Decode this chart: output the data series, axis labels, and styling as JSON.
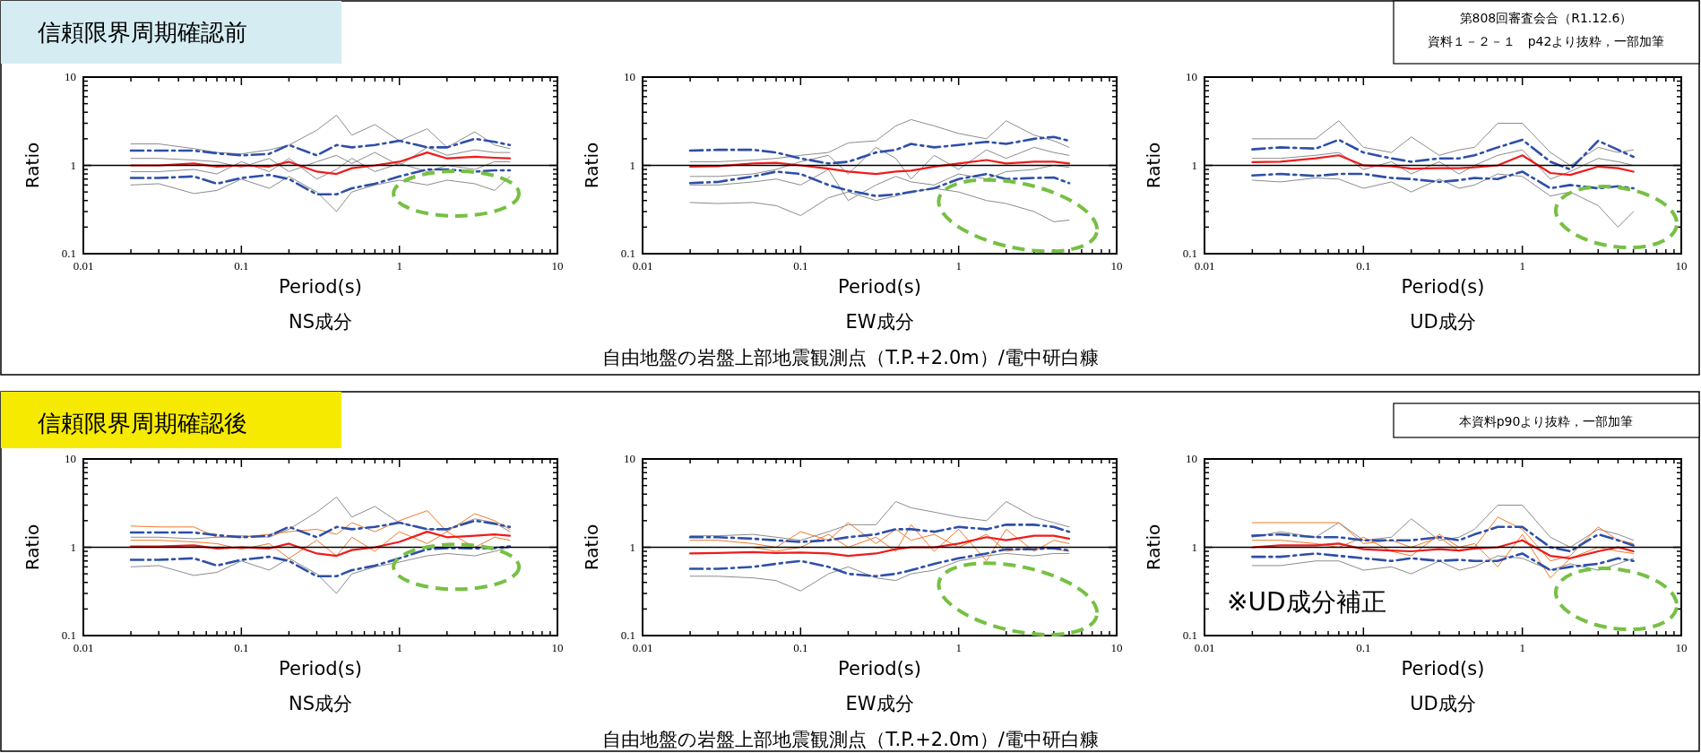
{
  "chart_data": [
    {
      "type": "line",
      "title": "信頼限界周期確認前",
      "annotations": [
        "第808回審査会合（R1.12.6）",
        "資料１－２－１　p42より抜粋，一部加筆"
      ],
      "xlabel": "Period(s)",
      "ylabel": "Ratio",
      "subtitle": "NS成分",
      "log": "xy",
      "xlim": [
        0.01,
        10
      ],
      "ylim": [
        0.1,
        10
      ],
      "xticks": [
        0.01,
        {
          "value": 0.02,
          "label": null
        },
        {
          "value": 0.03,
          "label": null
        },
        {
          "value": 0.04,
          "label": null
        },
        {
          "value": 0.05,
          "label": null
        },
        {
          "value": 0.06,
          "label": null
        },
        {
          "value": 0.07,
          "label": null
        },
        {
          "value": 0.08,
          "label": null
        },
        {
          "value": 0.09,
          "label": null
        },
        0.1,
        {
          "value": 0.2,
          "label": null
        },
        {
          "value": 0.3,
          "label": null
        },
        {
          "value": 0.4,
          "label": null
        },
        {
          "value": 0.5,
          "label": null
        },
        {
          "value": 0.6,
          "label": null
        },
        {
          "value": 0.7,
          "label": null
        },
        {
          "value": 0.8,
          "label": null
        },
        {
          "value": 0.9,
          "label": null
        },
        1,
        {
          "value": 2,
          "label": null
        },
        {
          "value": 3,
          "label": null
        },
        {
          "value": 4,
          "label": null
        },
        {
          "value": 5,
          "label": null
        },
        {
          "value": 6,
          "label": null
        },
        {
          "value": 7,
          "label": null
        },
        {
          "value": 8,
          "label": null
        },
        {
          "value": 9,
          "label": null
        },
        10
      ],
      "yticks": [
        0.1,
        {
          "value": 0.2,
          "label": null
        },
        {
          "value": 0.3,
          "label": null
        },
        {
          "value": 0.4,
          "label": null
        },
        {
          "value": 0.5,
          "label": null
        },
        {
          "value": 0.6,
          "label": null
        },
        {
          "value": 0.7,
          "label": null
        },
        {
          "value": 0.8,
          "label": null
        },
        {
          "value": 0.9,
          "label": null
        },
        1,
        {
          "value": 2,
          "label": null
        },
        {
          "value": 3,
          "label": null
        },
        {
          "value": 4,
          "label": null
        },
        {
          "value": 5,
          "label": null
        },
        {
          "value": 6,
          "label": null
        },
        {
          "value": 7,
          "label": null
        },
        {
          "value": 8,
          "label": null
        },
        {
          "value": 9,
          "label": null
        },
        10
      ],
      "ref_lines": [
        {
          "axis": "y",
          "value": 1,
          "color": "#000000"
        }
      ],
      "x": [
        0.02,
        0.03,
        0.05,
        0.07,
        0.1,
        0.15,
        0.2,
        0.3,
        0.4,
        0.5,
        0.7,
        1,
        1.5,
        2,
        3,
        4,
        5
      ],
      "series": [
        {
          "color": "#8c8c8c",
          "values": [
            1.75,
            1.75,
            1.55,
            1.4,
            1.35,
            1.5,
            1.7,
            2.5,
            3.7,
            2.2,
            2.9,
            1.9,
            2.6,
            1.6,
            2.4,
            1.7,
            1.55
          ]
        },
        {
          "color": "#8c8c8c",
          "values": [
            0.6,
            0.62,
            0.48,
            0.52,
            0.7,
            0.55,
            0.75,
            0.5,
            0.3,
            0.5,
            0.6,
            0.68,
            0.6,
            0.68,
            0.62,
            0.52,
            0.75
          ]
        },
        {
          "color": "#8c8c8c",
          "values": [
            1.2,
            1.2,
            1.15,
            1.1,
            0.95,
            1.2,
            0.85,
            1.1,
            1.3,
            1.05,
            1.4,
            1,
            1.6,
            1.3,
            1.5,
            1.4,
            1.4
          ]
        },
        {
          "color": "#8c8c8c",
          "values": [
            0.85,
            0.85,
            0.9,
            0.8,
            1.1,
            0.85,
            1.2,
            0.7,
            0.9,
            1.2,
            0.85,
            1.05,
            0.85,
            1,
            0.9,
            1.1,
            1.1
          ]
        },
        {
          "color": "#2e4fa8",
          "line_style": "dashed",
          "values": [
            1.47,
            1.47,
            1.47,
            1.37,
            1.3,
            1.35,
            1.7,
            1.3,
            1.7,
            1.6,
            1.7,
            1.9,
            1.6,
            1.6,
            2,
            1.85,
            1.7
          ]
        },
        {
          "color": "#2e4fa8",
          "line_style": "dashed",
          "values": [
            0.72,
            0.72,
            0.75,
            0.62,
            0.72,
            0.78,
            0.7,
            0.47,
            0.47,
            0.55,
            0.62,
            0.75,
            0.9,
            0.9,
            0.85,
            0.88,
            0.88
          ]
        },
        {
          "color": "#ee1c1c",
          "values": [
            1,
            1,
            1.05,
            0.97,
            1,
            0.97,
            1.1,
            0.85,
            0.8,
            0.93,
            1,
            1.1,
            1.4,
            1.2,
            1.25,
            1.22,
            1.2
          ]
        }
      ]
    },
    {
      "type": "line",
      "annotations": [
        "自由地盤の岩盤上部地震観測点（T.P.+2.0m）/電中研白糠"
      ],
      "xlabel": "Period(s)",
      "ylabel": "Ratio",
      "subtitle": "EW成分",
      "log": "xy",
      "xlim": [
        0.01,
        10
      ],
      "ylim": [
        0.1,
        10
      ],
      "xticks": [
        0.01,
        {
          "value": 0.02,
          "label": null
        },
        {
          "value": 0.03,
          "label": null
        },
        {
          "value": 0.04,
          "label": null
        },
        {
          "value": 0.05,
          "label": null
        },
        {
          "value": 0.06,
          "label": null
        },
        {
          "value": 0.07,
          "label": null
        },
        {
          "value": 0.08,
          "label": null
        },
        {
          "value": 0.09,
          "label": null
        },
        0.1,
        {
          "value": 0.2,
          "label": null
        },
        {
          "value": 0.3,
          "label": null
        },
        {
          "value": 0.4,
          "label": null
        },
        {
          "value": 0.5,
          "label": null
        },
        {
          "value": 0.6,
          "label": null
        },
        {
          "value": 0.7,
          "label": null
        },
        {
          "value": 0.8,
          "label": null
        },
        {
          "value": 0.9,
          "label": null
        },
        1,
        {
          "value": 2,
          "label": null
        },
        {
          "value": 3,
          "label": null
        },
        {
          "value": 4,
          "label": null
        },
        {
          "value": 5,
          "label": null
        },
        {
          "value": 6,
          "label": null
        },
        {
          "value": 7,
          "label": null
        },
        {
          "value": 8,
          "label": null
        },
        {
          "value": 9,
          "label": null
        },
        10
      ],
      "yticks": [
        0.1,
        {
          "value": 0.2,
          "label": null
        },
        {
          "value": 0.3,
          "label": null
        },
        {
          "value": 0.4,
          "label": null
        },
        {
          "value": 0.5,
          "label": null
        },
        {
          "value": 0.6,
          "label": null
        },
        {
          "value": 0.7,
          "label": null
        },
        {
          "value": 0.8,
          "label": null
        },
        {
          "value": 0.9,
          "label": null
        },
        1,
        {
          "value": 2,
          "label": null
        },
        {
          "value": 3,
          "label": null
        },
        {
          "value": 4,
          "label": null
        },
        {
          "value": 5,
          "label": null
        },
        {
          "value": 6,
          "label": null
        },
        {
          "value": 7,
          "label": null
        },
        {
          "value": 8,
          "label": null
        },
        {
          "value": 9,
          "label": null
        },
        10
      ],
      "ref_lines": [
        {
          "axis": "y",
          "value": 1,
          "color": "#000000"
        }
      ],
      "x": [
        0.02,
        0.03,
        0.05,
        0.07,
        0.1,
        0.15,
        0.2,
        0.3,
        0.4,
        0.5,
        0.7,
        1,
        1.5,
        2,
        3,
        4,
        5
      ],
      "series": [
        {
          "color": "#8c8c8c",
          "values": [
            0.38,
            0.37,
            0.38,
            0.35,
            0.27,
            0.43,
            0.5,
            0.4,
            0.45,
            0.5,
            0.55,
            0.5,
            0.4,
            0.37,
            0.3,
            0.23,
            0.24
          ]
        },
        {
          "color": "#8c8c8c",
          "values": [
            1.1,
            1.1,
            1.15,
            1.2,
            1.3,
            1.4,
            1.8,
            1.9,
            2.8,
            3.3,
            2.8,
            2.3,
            2,
            3.2,
            2.2,
            1.9,
            1.6
          ]
        },
        {
          "color": "#8c8c8c",
          "values": [
            0.75,
            0.75,
            0.8,
            0.9,
            1.1,
            1.3,
            0.8,
            1.6,
            1.2,
            0.7,
            1.3,
            0.9,
            1.5,
            1.2,
            1.6,
            1.4,
            1.3
          ]
        },
        {
          "color": "#8c8c8c",
          "values": [
            0.6,
            0.6,
            0.65,
            0.7,
            0.6,
            0.9,
            0.4,
            0.6,
            0.75,
            0.65,
            0.6,
            0.8,
            0.7,
            0.85,
            0.9,
            1,
            0.95
          ]
        },
        {
          "color": "#2e4fa8",
          "line_style": "dashed",
          "values": [
            1.47,
            1.5,
            1.5,
            1.4,
            1.2,
            1.05,
            1.1,
            1.4,
            1.5,
            1.75,
            1.6,
            1.7,
            1.85,
            1.75,
            2,
            2.1,
            1.9
          ]
        },
        {
          "color": "#2e4fa8",
          "line_style": "dashed",
          "values": [
            0.63,
            0.65,
            0.75,
            0.85,
            0.8,
            0.6,
            0.52,
            0.45,
            0.47,
            0.5,
            0.55,
            0.7,
            0.8,
            0.7,
            0.72,
            0.73,
            0.63
          ]
        },
        {
          "color": "#ee1c1c",
          "values": [
            0.97,
            0.98,
            1.05,
            1.07,
            1,
            0.92,
            0.85,
            0.8,
            0.85,
            0.87,
            0.97,
            1.05,
            1.15,
            1.05,
            1.1,
            1.1,
            1.05
          ]
        }
      ]
    },
    {
      "type": "line",
      "xlabel": "Period(s)",
      "ylabel": "Ratio",
      "subtitle": "UD成分",
      "log": "xy",
      "xlim": [
        0.01,
        10
      ],
      "ylim": [
        0.1,
        10
      ],
      "xticks": [
        0.01,
        {
          "value": 0.02,
          "label": null
        },
        {
          "value": 0.03,
          "label": null
        },
        {
          "value": 0.04,
          "label": null
        },
        {
          "value": 0.05,
          "label": null
        },
        {
          "value": 0.06,
          "label": null
        },
        {
          "value": 0.07,
          "label": null
        },
        {
          "value": 0.08,
          "label": null
        },
        {
          "value": 0.09,
          "label": null
        },
        0.1,
        {
          "value": 0.2,
          "label": null
        },
        {
          "value": 0.3,
          "label": null
        },
        {
          "value": 0.4,
          "label": null
        },
        {
          "value": 0.5,
          "label": null
        },
        {
          "value": 0.6,
          "label": null
        },
        {
          "value": 0.7,
          "label": null
        },
        {
          "value": 0.8,
          "label": null
        },
        {
          "value": 0.9,
          "label": null
        },
        1,
        {
          "value": 2,
          "label": null
        },
        {
          "value": 3,
          "label": null
        },
        {
          "value": 4,
          "label": null
        },
        {
          "value": 5,
          "label": null
        },
        {
          "value": 6,
          "label": null
        },
        {
          "value": 7,
          "label": null
        },
        {
          "value": 8,
          "label": null
        },
        {
          "value": 9,
          "label": null
        },
        10
      ],
      "yticks": [
        0.1,
        {
          "value": 0.2,
          "label": null
        },
        {
          "value": 0.3,
          "label": null
        },
        {
          "value": 0.4,
          "label": null
        },
        {
          "value": 0.5,
          "label": null
        },
        {
          "value": 0.6,
          "label": null
        },
        {
          "value": 0.7,
          "label": null
        },
        {
          "value": 0.8,
          "label": null
        },
        {
          "value": 0.9,
          "label": null
        },
        1,
        {
          "value": 2,
          "label": null
        },
        {
          "value": 3,
          "label": null
        },
        {
          "value": 4,
          "label": null
        },
        {
          "value": 5,
          "label": null
        },
        {
          "value": 6,
          "label": null
        },
        {
          "value": 7,
          "label": null
        },
        {
          "value": 8,
          "label": null
        },
        {
          "value": 9,
          "label": null
        },
        10
      ],
      "ref_lines": [
        {
          "axis": "y",
          "value": 1,
          "color": "#000000"
        }
      ],
      "x": [
        0.02,
        0.03,
        0.05,
        0.07,
        0.1,
        0.15,
        0.2,
        0.3,
        0.4,
        0.5,
        0.7,
        1,
        1.5,
        2,
        3,
        4,
        5
      ],
      "series": [
        {
          "color": "#8c8c8c",
          "values": [
            0.68,
            0.65,
            0.72,
            0.7,
            0.55,
            0.65,
            0.5,
            0.7,
            0.55,
            0.6,
            0.8,
            0.75,
            0.45,
            0.5,
            0.35,
            0.2,
            0.3
          ]
        },
        {
          "color": "#8c8c8c",
          "values": [
            2,
            2,
            2,
            3.2,
            1.6,
            1.4,
            2.1,
            1.3,
            1.5,
            1.6,
            3,
            3,
            1.4,
            1,
            1.6,
            1.4,
            1.5
          ]
        },
        {
          "color": "#8c8c8c",
          "values": [
            1.2,
            1.2,
            1.3,
            1.4,
            0.9,
            1.1,
            0.8,
            1.1,
            0.8,
            1,
            1.3,
            1.5,
            0.7,
            0.85,
            1.2,
            1.1,
            1
          ]
        },
        {
          "color": "#2e4fa8",
          "line_style": "dashed",
          "values": [
            1.52,
            1.6,
            1.55,
            1.95,
            1.4,
            1.2,
            1.1,
            1.2,
            1.2,
            1.3,
            1.6,
            1.95,
            1.1,
            0.9,
            1.9,
            1.5,
            1.25
          ]
        },
        {
          "color": "#2e4fa8",
          "line_style": "dashed",
          "values": [
            0.77,
            0.8,
            0.76,
            0.8,
            0.8,
            0.72,
            0.7,
            0.65,
            0.68,
            0.72,
            0.7,
            0.85,
            0.55,
            0.6,
            0.55,
            0.58,
            0.55
          ]
        },
        {
          "color": "#ee1c1c",
          "values": [
            1.09,
            1.1,
            1.2,
            1.3,
            1,
            0.98,
            0.92,
            0.93,
            0.93,
            0.95,
            1,
            1.3,
            0.82,
            0.78,
            0.97,
            0.93,
            0.85
          ]
        }
      ]
    },
    {
      "type": "line",
      "title": "信頼限界周期確認後",
      "annotations": [
        "本資料p90より抜粋，一部加筆"
      ],
      "xlabel": "Period(s)",
      "ylabel": "Ratio",
      "subtitle": "NS成分",
      "log": "xy",
      "xlim": [
        0.01,
        10
      ],
      "ylim": [
        0.1,
        10
      ],
      "xticks": [
        0.01,
        {
          "value": 0.02,
          "label": null
        },
        {
          "value": 0.03,
          "label": null
        },
        {
          "value": 0.04,
          "label": null
        },
        {
          "value": 0.05,
          "label": null
        },
        {
          "value": 0.06,
          "label": null
        },
        {
          "value": 0.07,
          "label": null
        },
        {
          "value": 0.08,
          "label": null
        },
        {
          "value": 0.09,
          "label": null
        },
        0.1,
        {
          "value": 0.2,
          "label": null
        },
        {
          "value": 0.3,
          "label": null
        },
        {
          "value": 0.4,
          "label": null
        },
        {
          "value": 0.5,
          "label": null
        },
        {
          "value": 0.6,
          "label": null
        },
        {
          "value": 0.7,
          "label": null
        },
        {
          "value": 0.8,
          "label": null
        },
        {
          "value": 0.9,
          "label": null
        },
        1,
        {
          "value": 2,
          "label": null
        },
        {
          "value": 3,
          "label": null
        },
        {
          "value": 4,
          "label": null
        },
        {
          "value": 5,
          "label": null
        },
        {
          "value": 6,
          "label": null
        },
        {
          "value": 7,
          "label": null
        },
        {
          "value": 8,
          "label": null
        },
        {
          "value": 9,
          "label": null
        },
        10
      ],
      "yticks": [
        0.1,
        {
          "value": 0.2,
          "label": null
        },
        {
          "value": 0.3,
          "label": null
        },
        {
          "value": 0.4,
          "label": null
        },
        {
          "value": 0.5,
          "label": null
        },
        {
          "value": 0.6,
          "label": null
        },
        {
          "value": 0.7,
          "label": null
        },
        {
          "value": 0.8,
          "label": null
        },
        {
          "value": 0.9,
          "label": null
        },
        1,
        {
          "value": 2,
          "label": null
        },
        {
          "value": 3,
          "label": null
        },
        {
          "value": 4,
          "label": null
        },
        {
          "value": 5,
          "label": null
        },
        {
          "value": 6,
          "label": null
        },
        {
          "value": 7,
          "label": null
        },
        {
          "value": 8,
          "label": null
        },
        {
          "value": 9,
          "label": null
        },
        10
      ],
      "ref_lines": [
        {
          "axis": "y",
          "value": 1,
          "color": "#000000"
        }
      ],
      "x": [
        0.02,
        0.03,
        0.05,
        0.07,
        0.1,
        0.15,
        0.2,
        0.3,
        0.4,
        0.5,
        0.7,
        1,
        1.5,
        2,
        3,
        4,
        5
      ],
      "series": [
        {
          "color": "#8c8c8c",
          "values": [
            1.3,
            1.3,
            1.25,
            1.3,
            1.35,
            1.3,
            1.6,
            2.5,
            3.7,
            2.2,
            2.9,
            1.9,
            1.6,
            1.6,
            2.1,
            1.9,
            1.5
          ]
        },
        {
          "color": "#8c8c8c",
          "values": [
            0.6,
            0.62,
            0.48,
            0.52,
            0.7,
            0.55,
            0.75,
            0.5,
            0.3,
            0.5,
            0.6,
            0.68,
            0.8,
            0.85,
            0.8,
            0.9,
            1
          ]
        },
        {
          "color": "#f07a2a",
          "values": [
            1.74,
            1.7,
            1.7,
            1.3,
            1.3,
            1.4,
            1.5,
            1.6,
            1.4,
            1.9,
            1.5,
            2,
            2.6,
            1.5,
            2.4,
            2,
            1.6
          ]
        },
        {
          "color": "#f07a2a",
          "values": [
            1.2,
            1.2,
            1.15,
            1.1,
            0.95,
            1.1,
            0.75,
            1.2,
            0.8,
            1.3,
            0.9,
            1.5,
            1.1,
            1.5,
            1,
            1.3,
            1.2
          ]
        },
        {
          "color": "#2e4fa8",
          "line_style": "dashed",
          "values": [
            1.47,
            1.47,
            1.47,
            1.37,
            1.3,
            1.35,
            1.7,
            1.3,
            1.7,
            1.6,
            1.7,
            1.9,
            1.6,
            1.6,
            2,
            1.85,
            1.7
          ]
        },
        {
          "color": "#2e4fa8",
          "line_style": "dashed",
          "values": [
            0.72,
            0.72,
            0.75,
            0.62,
            0.72,
            0.78,
            0.7,
            0.47,
            0.47,
            0.55,
            0.62,
            0.75,
            0.95,
            0.98,
            0.97,
            0.98,
            1.02
          ]
        },
        {
          "color": "#ee1c1c",
          "values": [
            1.02,
            1.02,
            1.05,
            0.97,
            1,
            0.97,
            1.1,
            0.85,
            0.8,
            0.93,
            1,
            1.15,
            1.5,
            1.3,
            1.35,
            1.4,
            1.35
          ]
        }
      ]
    },
    {
      "type": "line",
      "annotations": [
        "自由地盤の岩盤上部地震観測点（T.P.+2.0m）/電中研白糠"
      ],
      "xlabel": "Period(s)",
      "ylabel": "Ratio",
      "subtitle": "EW成分",
      "log": "xy",
      "xlim": [
        0.01,
        10
      ],
      "ylim": [
        0.1,
        10
      ],
      "xticks": [
        0.01,
        {
          "value": 0.02,
          "label": null
        },
        {
          "value": 0.03,
          "label": null
        },
        {
          "value": 0.04,
          "label": null
        },
        {
          "value": 0.05,
          "label": null
        },
        {
          "value": 0.06,
          "label": null
        },
        {
          "value": 0.07,
          "label": null
        },
        {
          "value": 0.08,
          "label": null
        },
        {
          "value": 0.09,
          "label": null
        },
        0.1,
        {
          "value": 0.2,
          "label": null
        },
        {
          "value": 0.3,
          "label": null
        },
        {
          "value": 0.4,
          "label": null
        },
        {
          "value": 0.5,
          "label": null
        },
        {
          "value": 0.6,
          "label": null
        },
        {
          "value": 0.7,
          "label": null
        },
        {
          "value": 0.8,
          "label": null
        },
        {
          "value": 0.9,
          "label": null
        },
        1,
        {
          "value": 2,
          "label": null
        },
        {
          "value": 3,
          "label": null
        },
        {
          "value": 4,
          "label": null
        },
        {
          "value": 5,
          "label": null
        },
        {
          "value": 6,
          "label": null
        },
        {
          "value": 7,
          "label": null
        },
        {
          "value": 8,
          "label": null
        },
        {
          "value": 9,
          "label": null
        },
        10
      ],
      "yticks": [
        0.1,
        {
          "value": 0.2,
          "label": null
        },
        {
          "value": 0.3,
          "label": null
        },
        {
          "value": 0.4,
          "label": null
        },
        {
          "value": 0.5,
          "label": null
        },
        {
          "value": 0.6,
          "label": null
        },
        {
          "value": 0.7,
          "label": null
        },
        {
          "value": 0.8,
          "label": null
        },
        {
          "value": 0.9,
          "label": null
        },
        1,
        {
          "value": 2,
          "label": null
        },
        {
          "value": 3,
          "label": null
        },
        {
          "value": 4,
          "label": null
        },
        {
          "value": 5,
          "label": null
        },
        {
          "value": 6,
          "label": null
        },
        {
          "value": 7,
          "label": null
        },
        {
          "value": 8,
          "label": null
        },
        {
          "value": 9,
          "label": null
        },
        10
      ],
      "ref_lines": [
        {
          "axis": "y",
          "value": 1,
          "color": "#000000"
        }
      ],
      "x": [
        0.02,
        0.03,
        0.05,
        0.07,
        0.1,
        0.15,
        0.2,
        0.3,
        0.4,
        0.5,
        0.7,
        1,
        1.5,
        2,
        3,
        4,
        5
      ],
      "series": [
        {
          "color": "#8c8c8c",
          "values": [
            0.47,
            0.47,
            0.45,
            0.42,
            0.32,
            0.5,
            0.6,
            0.45,
            0.42,
            0.5,
            0.55,
            0.7,
            0.8,
            0.85,
            0.8,
            0.85,
            0.85
          ]
        },
        {
          "color": "#8c8c8c",
          "values": [
            1.35,
            1.35,
            1.4,
            1.3,
            1.2,
            1.5,
            1.8,
            1.8,
            3.3,
            2.8,
            2.5,
            2.2,
            2,
            3.3,
            2.2,
            1.9,
            1.7
          ]
        },
        {
          "color": "#f07a2a",
          "values": [
            1.2,
            1.2,
            1.1,
            1,
            1.5,
            1.2,
            1.9,
            1.1,
            1.6,
            1.2,
            1.4,
            1,
            1.4,
            0.9,
            1,
            0.95,
            0.9
          ]
        },
        {
          "color": "#f07a2a",
          "values": [
            null,
            null,
            1,
            0.9,
            1,
            1.4,
            1,
            1.3,
            0.9,
            1.8,
            0.9,
            1.6,
            0.7,
            1.6,
            0.9,
            1.2,
            1.1
          ]
        },
        {
          "color": "#2e4fa8",
          "line_style": "dashed",
          "values": [
            1.3,
            1.3,
            1.25,
            1.2,
            1.15,
            1.2,
            1.3,
            1.4,
            1.6,
            1.6,
            1.5,
            1.7,
            1.6,
            1.8,
            1.8,
            1.7,
            1.5
          ]
        },
        {
          "color": "#2e4fa8",
          "line_style": "dashed",
          "values": [
            0.57,
            0.57,
            0.6,
            0.65,
            0.7,
            0.6,
            0.5,
            0.47,
            0.5,
            0.55,
            0.65,
            0.75,
            0.85,
            0.95,
            0.95,
            0.98,
            0.92
          ]
        },
        {
          "color": "#ee1c1c",
          "values": [
            0.85,
            0.86,
            0.88,
            0.86,
            0.87,
            0.85,
            0.8,
            0.85,
            0.95,
            1,
            1,
            1.1,
            1.3,
            1.2,
            1.35,
            1.35,
            1.25
          ]
        }
      ]
    },
    {
      "type": "line",
      "annotations": [
        "※UD成分補正"
      ],
      "xlabel": "Period(s)",
      "ylabel": "Ratio",
      "subtitle": "UD成分",
      "log": "xy",
      "xlim": [
        0.01,
        10
      ],
      "ylim": [
        0.1,
        10
      ],
      "xticks": [
        0.01,
        {
          "value": 0.02,
          "label": null
        },
        {
          "value": 0.03,
          "label": null
        },
        {
          "value": 0.04,
          "label": null
        },
        {
          "value": 0.05,
          "label": null
        },
        {
          "value": 0.06,
          "label": null
        },
        {
          "value": 0.07,
          "label": null
        },
        {
          "value": 0.08,
          "label": null
        },
        {
          "value": 0.09,
          "label": null
        },
        0.1,
        {
          "value": 0.2,
          "label": null
        },
        {
          "value": 0.3,
          "label": null
        },
        {
          "value": 0.4,
          "label": null
        },
        {
          "value": 0.5,
          "label": null
        },
        {
          "value": 0.6,
          "label": null
        },
        {
          "value": 0.7,
          "label": null
        },
        {
          "value": 0.8,
          "label": null
        },
        {
          "value": 0.9,
          "label": null
        },
        1,
        {
          "value": 2,
          "label": null
        },
        {
          "value": 3,
          "label": null
        },
        {
          "value": 4,
          "label": null
        },
        {
          "value": 5,
          "label": null
        },
        {
          "value": 6,
          "label": null
        },
        {
          "value": 7,
          "label": null
        },
        {
          "value": 8,
          "label": null
        },
        {
          "value": 9,
          "label": null
        },
        10
      ],
      "yticks": [
        0.1,
        {
          "value": 0.2,
          "label": null
        },
        {
          "value": 0.3,
          "label": null
        },
        {
          "value": 0.4,
          "label": null
        },
        {
          "value": 0.5,
          "label": null
        },
        {
          "value": 0.6,
          "label": null
        },
        {
          "value": 0.7,
          "label": null
        },
        {
          "value": 0.8,
          "label": null
        },
        {
          "value": 0.9,
          "label": null
        },
        1,
        {
          "value": 2,
          "label": null
        },
        {
          "value": 3,
          "label": null
        },
        {
          "value": 4,
          "label": null
        },
        {
          "value": 5,
          "label": null
        },
        {
          "value": 6,
          "label": null
        },
        {
          "value": 7,
          "label": null
        },
        {
          "value": 8,
          "label": null
        },
        {
          "value": 9,
          "label": null
        },
        10
      ],
      "ref_lines": [
        {
          "axis": "y",
          "value": 1,
          "color": "#000000"
        }
      ],
      "x": [
        0.02,
        0.03,
        0.05,
        0.07,
        0.1,
        0.15,
        0.2,
        0.3,
        0.4,
        0.5,
        0.7,
        1,
        1.5,
        2,
        3,
        4,
        5
      ],
      "series": [
        {
          "color": "#8c8c8c",
          "values": [
            1.3,
            1.5,
            1.3,
            1.9,
            1.2,
            1.3,
            2.1,
            1.2,
            1.3,
            1.6,
            3,
            3,
            1.3,
            1,
            1.6,
            1.4,
            1.2
          ]
        },
        {
          "color": "#8c8c8c",
          "values": [
            0.62,
            0.62,
            0.7,
            0.7,
            0.55,
            0.6,
            0.5,
            0.7,
            0.55,
            0.6,
            0.8,
            0.75,
            0.55,
            0.65,
            0.55,
            0.65,
            0.75
          ]
        },
        {
          "color": "#f07a2a",
          "values": [
            1.9,
            1.9,
            1.9,
            1.9,
            1.1,
            1.2,
            1,
            1.3,
            0.9,
            1,
            2.2,
            1.6,
            0.7,
            0.8,
            1.7,
            1.2,
            1.1
          ]
        },
        {
          "color": "#f07a2a",
          "values": [
            1.2,
            1.2,
            1.1,
            1,
            1.3,
            0.9,
            0.8,
            1.4,
            1,
            1.1,
            0.6,
            1.4,
            0.45,
            0.75,
            1,
            0.9,
            0.85
          ]
        },
        {
          "color": "#2e4fa8",
          "line_style": "dashed",
          "values": [
            1.35,
            1.4,
            1.3,
            1.3,
            1.2,
            1.2,
            1.2,
            1.3,
            1.2,
            1.4,
            1.7,
            1.7,
            1,
            0.9,
            1.4,
            1.2,
            1.05
          ]
        },
        {
          "color": "#2e4fa8",
          "line_style": "dashed",
          "values": [
            0.78,
            0.78,
            0.85,
            0.8,
            0.75,
            0.7,
            0.75,
            0.7,
            0.72,
            0.7,
            0.7,
            0.85,
            0.55,
            0.6,
            0.65,
            0.75,
            0.7
          ]
        },
        {
          "color": "#ee1c1c",
          "values": [
            1,
            1.05,
            1.05,
            1.1,
            0.95,
            0.92,
            0.9,
            0.95,
            0.92,
            0.97,
            1,
            1.2,
            0.8,
            0.75,
            0.9,
            1,
            0.9
          ]
        }
      ]
    }
  ]
}
